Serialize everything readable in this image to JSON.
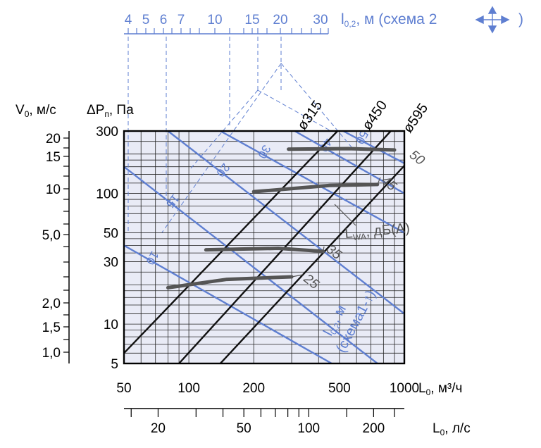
{
  "chart_data": {
    "type": "line",
    "scale": "log-log",
    "x_axis": {
      "label": "L",
      "label_sub": "0",
      "label_unit": ", м³/ч",
      "range": [
        50,
        1000
      ],
      "ticks": [
        50,
        100,
        200,
        500,
        1000
      ]
    },
    "x2_axis": {
      "label": "L",
      "label_sub": "0",
      "label_unit": ", л/с",
      "ticks": [
        20,
        50,
        100,
        200
      ]
    },
    "y_axis": {
      "label": "ΔP",
      "label_sub": "п",
      "label_unit": ", Па",
      "range": [
        5,
        300
      ],
      "ticks": [
        5,
        10,
        30,
        50,
        100,
        300
      ]
    },
    "y2_axis": {
      "label": "V",
      "label_sub": "0",
      "label_unit": ", м/с",
      "ticks": [
        "1,0",
        "1,5",
        "2,0",
        "5,0",
        "10",
        "15",
        "20"
      ],
      "tick_values": [
        1.0,
        1.5,
        2.0,
        5.0,
        10,
        15,
        20
      ]
    },
    "top_axis": {
      "label": "l",
      "label_sub": "0,2",
      "label_unit": ", м (схема 2",
      "label_end": ")",
      "ticks": [
        "4",
        "5",
        "6",
        "7",
        "10",
        "15",
        "20",
        "30"
      ]
    },
    "size_lines": [
      {
        "name": "ø315",
        "x": [
          50,
          1000
        ],
        "y": [
          6,
          1020
        ]
      },
      {
        "name": "ø450",
        "x": [
          90,
          1000
        ],
        "y": [
          5,
          390
        ]
      },
      {
        "name": "ø595",
        "x": [
          140,
          1000
        ],
        "y": [
          5,
          163
        ]
      }
    ],
    "noise_curves": [
      {
        "label": "25",
        "x": [
          80,
          150,
          300
        ],
        "y": [
          19,
          22,
          23
        ]
      },
      {
        "label": "35",
        "x": [
          120,
          260,
          420
        ],
        "y": [
          37,
          38,
          36
        ]
      },
      {
        "label": "45",
        "x": [
          200,
          450,
          750
        ],
        "y": [
          103,
          115,
          117
        ]
      },
      {
        "label": "50",
        "x": [
          290,
          550,
          900
        ],
        "y": [
          218,
          220,
          215
        ]
      }
    ],
    "throw_lines": [
      {
        "label": "10",
        "x": [
          50,
          460
        ],
        "y": [
          40,
          5
        ]
      },
      {
        "label": "15",
        "x": [
          50,
          750
        ],
        "y": [
          160,
          5
        ]
      },
      {
        "label": "20",
        "x": [
          80,
          1000
        ],
        "y": [
          300,
          12
        ]
      },
      {
        "label": "30",
        "x": [
          140,
          1000
        ],
        "y": [
          300,
          50
        ]
      },
      {
        "label": "40",
        "x": [
          310,
          1000
        ],
        "y": [
          300,
          100
        ]
      },
      {
        "label": "50",
        "x": [
          520,
          1000
        ],
        "y": [
          300,
          170
        ]
      }
    ],
    "annotations": {
      "lwa": "L",
      "lwa_sub": "WA",
      "lwa_unit": ", дБ(А)",
      "throw1": "l",
      "throw1_sub": "0,2",
      "throw1_unit": ", м",
      "throw1_scheme": "(схема1-↑)"
    },
    "colors": {
      "size": "#111111",
      "noise": "#555555",
      "throw": "#5f7fd1",
      "bg": "#e9ebf6"
    }
  }
}
